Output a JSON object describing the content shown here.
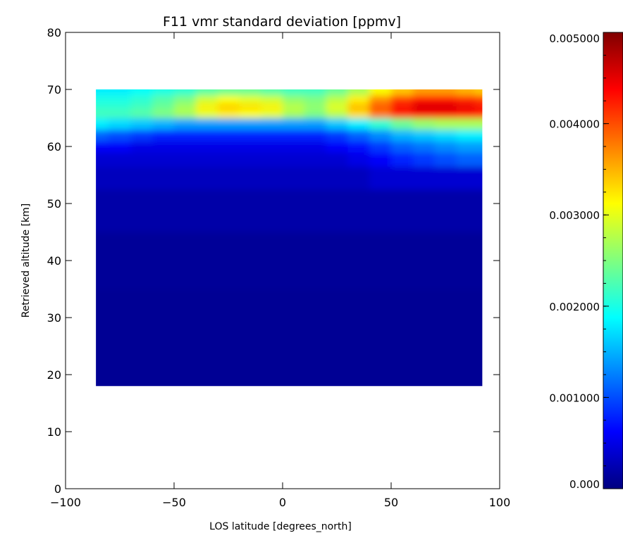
{
  "chart_data": {
    "type": "heatmap",
    "title": "F11 vmr standard deviation [ppmv]",
    "xlabel": "LOS latitude [degrees_north]",
    "ylabel": "Retrieved altitude [km]",
    "xlim": [
      -100,
      100
    ],
    "ylim": [
      0,
      80
    ],
    "x_ticks": [
      -100,
      -50,
      0,
      50,
      100
    ],
    "y_ticks": [
      0,
      10,
      20,
      30,
      40,
      50,
      60,
      70,
      80
    ],
    "data_extent": {
      "lat": [
        -86,
        92
      ],
      "alt": [
        18,
        70
      ]
    },
    "colorbar": {
      "min": 0.0,
      "max": 0.005,
      "tick_values": [
        0.0,
        0.001,
        0.002,
        0.003,
        0.004,
        0.005
      ],
      "tick_labels": [
        "0.000",
        "0.001000",
        "0.002000",
        "0.003000",
        "0.004000",
        "0.005000"
      ],
      "colormap": "jet"
    },
    "grid": false,
    "latitudes": [
      -86,
      -75,
      -65,
      -55,
      -45,
      -35,
      -25,
      -15,
      -5,
      5,
      15,
      25,
      35,
      45,
      55,
      65,
      75,
      85,
      92
    ],
    "altitudes": [
      18,
      30,
      40,
      50,
      55,
      58,
      60,
      62,
      64,
      66,
      67,
      68,
      70
    ],
    "values": [
      [
        0.0001,
        0.0001,
        0.0001,
        0.0001,
        0.0001,
        0.0001,
        0.0001,
        0.0001,
        0.0001,
        0.0001,
        0.0001,
        0.0001,
        0.0001,
        0.0001,
        0.0001,
        0.0001,
        0.0001,
        0.0001,
        0.0001
      ],
      [
        0.0001,
        0.0001,
        0.0001,
        0.0001,
        0.0001,
        0.0001,
        0.0001,
        0.0001,
        0.0001,
        0.0001,
        0.0001,
        0.0001,
        0.0001,
        0.0001,
        0.0001,
        0.0001,
        0.0001,
        0.0001,
        0.0001
      ],
      [
        0.00012,
        0.00012,
        0.00012,
        0.00012,
        0.00012,
        0.00012,
        0.00012,
        0.00012,
        0.00012,
        0.00012,
        0.00012,
        0.00012,
        0.00012,
        0.00012,
        0.00012,
        0.00012,
        0.00012,
        0.00012,
        0.00012
      ],
      [
        0.0002,
        0.0002,
        0.0002,
        0.0002,
        0.0002,
        0.0002,
        0.0002,
        0.0002,
        0.0002,
        0.0002,
        0.0002,
        0.0002,
        0.0002,
        0.0002,
        0.0002,
        0.0002,
        0.0002,
        0.0002,
        0.0002
      ],
      [
        0.0003,
        0.0003,
        0.0003,
        0.0003,
        0.0003,
        0.0003,
        0.0003,
        0.0003,
        0.0003,
        0.0003,
        0.0003,
        0.0003,
        0.0003,
        0.0004,
        0.0004,
        0.0004,
        0.0004,
        0.0004,
        0.0004
      ],
      [
        0.0004,
        0.0004,
        0.0004,
        0.0004,
        0.0004,
        0.0004,
        0.0004,
        0.0004,
        0.0004,
        0.0004,
        0.0004,
        0.0004,
        0.0005,
        0.0006,
        0.0008,
        0.0009,
        0.001,
        0.0011,
        0.0011
      ],
      [
        0.0006,
        0.0006,
        0.0005,
        0.0005,
        0.0005,
        0.0005,
        0.0005,
        0.0005,
        0.0005,
        0.0005,
        0.0005,
        0.0006,
        0.0007,
        0.0009,
        0.0011,
        0.0012,
        0.0013,
        0.0014,
        0.0014
      ],
      [
        0.0011,
        0.001,
        0.0009,
        0.0008,
        0.0008,
        0.0008,
        0.0008,
        0.0008,
        0.0008,
        0.0008,
        0.0008,
        0.0009,
        0.0011,
        0.0013,
        0.0015,
        0.0016,
        0.0017,
        0.0018,
        0.0018
      ],
      [
        0.0018,
        0.0017,
        0.0016,
        0.0015,
        0.0014,
        0.0014,
        0.0014,
        0.0014,
        0.0014,
        0.0014,
        0.0014,
        0.0016,
        0.0018,
        0.0021,
        0.0024,
        0.0026,
        0.0027,
        0.0027,
        0.0027
      ],
      [
        0.0022,
        0.0022,
        0.0023,
        0.0025,
        0.0027,
        0.003,
        0.0032,
        0.0031,
        0.003,
        0.0027,
        0.0025,
        0.0028,
        0.0033,
        0.0038,
        0.0042,
        0.0044,
        0.0044,
        0.0043,
        0.0042
      ],
      [
        0.0021,
        0.0021,
        0.0022,
        0.0024,
        0.0027,
        0.0032,
        0.0034,
        0.0033,
        0.0032,
        0.0028,
        0.0026,
        0.003,
        0.0035,
        0.004,
        0.0044,
        0.0046,
        0.0046,
        0.0045,
        0.0044
      ],
      [
        0.002,
        0.002,
        0.0021,
        0.0023,
        0.0025,
        0.0029,
        0.0031,
        0.003,
        0.0029,
        0.0026,
        0.0025,
        0.0028,
        0.0032,
        0.0037,
        0.0041,
        0.0043,
        0.0043,
        0.0042,
        0.0041
      ],
      [
        0.0018,
        0.0018,
        0.0019,
        0.002,
        0.0021,
        0.0023,
        0.0024,
        0.0024,
        0.0023,
        0.0022,
        0.0022,
        0.0024,
        0.0027,
        0.0031,
        0.0034,
        0.0036,
        0.0036,
        0.0035,
        0.0034
      ]
    ]
  }
}
